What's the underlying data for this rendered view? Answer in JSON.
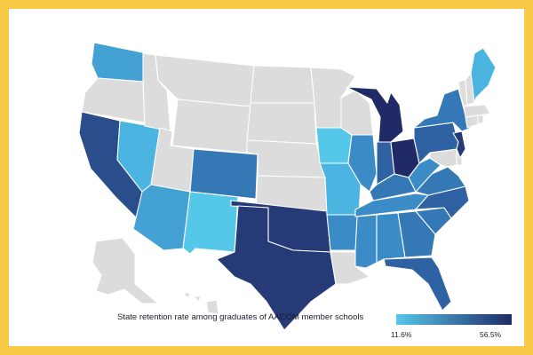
{
  "legend": {
    "title": "State retention rate among graduates of AACOM member schools",
    "min_label": "11.6%",
    "max_label": "56.5%",
    "min_color": "#55c8ea",
    "max_color": "#1f2a66"
  },
  "colors": {
    "no_data": "#dcdcdc",
    "frame": "#f9c948",
    "border": "#ffffff"
  },
  "states": [
    {
      "id": "WA",
      "bin": 2
    },
    {
      "id": "OR",
      "bin": -1
    },
    {
      "id": "CA",
      "bin": 6
    },
    {
      "id": "NV",
      "bin": 1
    },
    {
      "id": "ID",
      "bin": -1
    },
    {
      "id": "MT",
      "bin": -1
    },
    {
      "id": "WY",
      "bin": -1
    },
    {
      "id": "UT",
      "bin": -1
    },
    {
      "id": "AZ",
      "bin": 2
    },
    {
      "id": "CO",
      "bin": 4
    },
    {
      "id": "NM",
      "bin": 0
    },
    {
      "id": "ND",
      "bin": -1
    },
    {
      "id": "SD",
      "bin": -1
    },
    {
      "id": "NE",
      "bin": -1
    },
    {
      "id": "KS",
      "bin": -1
    },
    {
      "id": "OK",
      "bin": 7
    },
    {
      "id": "TX",
      "bin": 7
    },
    {
      "id": "MN",
      "bin": -1
    },
    {
      "id": "IA",
      "bin": 0
    },
    {
      "id": "MO",
      "bin": 1
    },
    {
      "id": "AR",
      "bin": 3
    },
    {
      "id": "LA",
      "bin": -1
    },
    {
      "id": "WI",
      "bin": -1
    },
    {
      "id": "IL",
      "bin": 3
    },
    {
      "id": "MI",
      "bin": 8
    },
    {
      "id": "IN",
      "bin": 5
    },
    {
      "id": "OH",
      "bin": 8
    },
    {
      "id": "KY",
      "bin": 4
    },
    {
      "id": "TN",
      "bin": 3
    },
    {
      "id": "MS",
      "bin": 3
    },
    {
      "id": "AL",
      "bin": 3
    },
    {
      "id": "GA",
      "bin": 4
    },
    {
      "id": "FL",
      "bin": 5
    },
    {
      "id": "SC",
      "bin": 4
    },
    {
      "id": "NC",
      "bin": 5
    },
    {
      "id": "VA",
      "bin": 4
    },
    {
      "id": "WV",
      "bin": 3
    },
    {
      "id": "PA",
      "bin": 5
    },
    {
      "id": "NY",
      "bin": 4
    },
    {
      "id": "NJ",
      "bin": 7
    },
    {
      "id": "DE",
      "bin": -1
    },
    {
      "id": "MD",
      "bin": -1
    },
    {
      "id": "CT",
      "bin": -1
    },
    {
      "id": "RI",
      "bin": -1
    },
    {
      "id": "MA",
      "bin": -1
    },
    {
      "id": "VT",
      "bin": -1
    },
    {
      "id": "NH",
      "bin": -1
    },
    {
      "id": "ME",
      "bin": 1
    },
    {
      "id": "AK",
      "bin": -1
    },
    {
      "id": "HI",
      "bin": -1
    }
  ],
  "palette": [
    "#55c8ea",
    "#4cb4e0",
    "#44a1d4",
    "#3b8cc6",
    "#3578b6",
    "#2f62a2",
    "#2a4d8c",
    "#253a76",
    "#1f2a66"
  ]
}
